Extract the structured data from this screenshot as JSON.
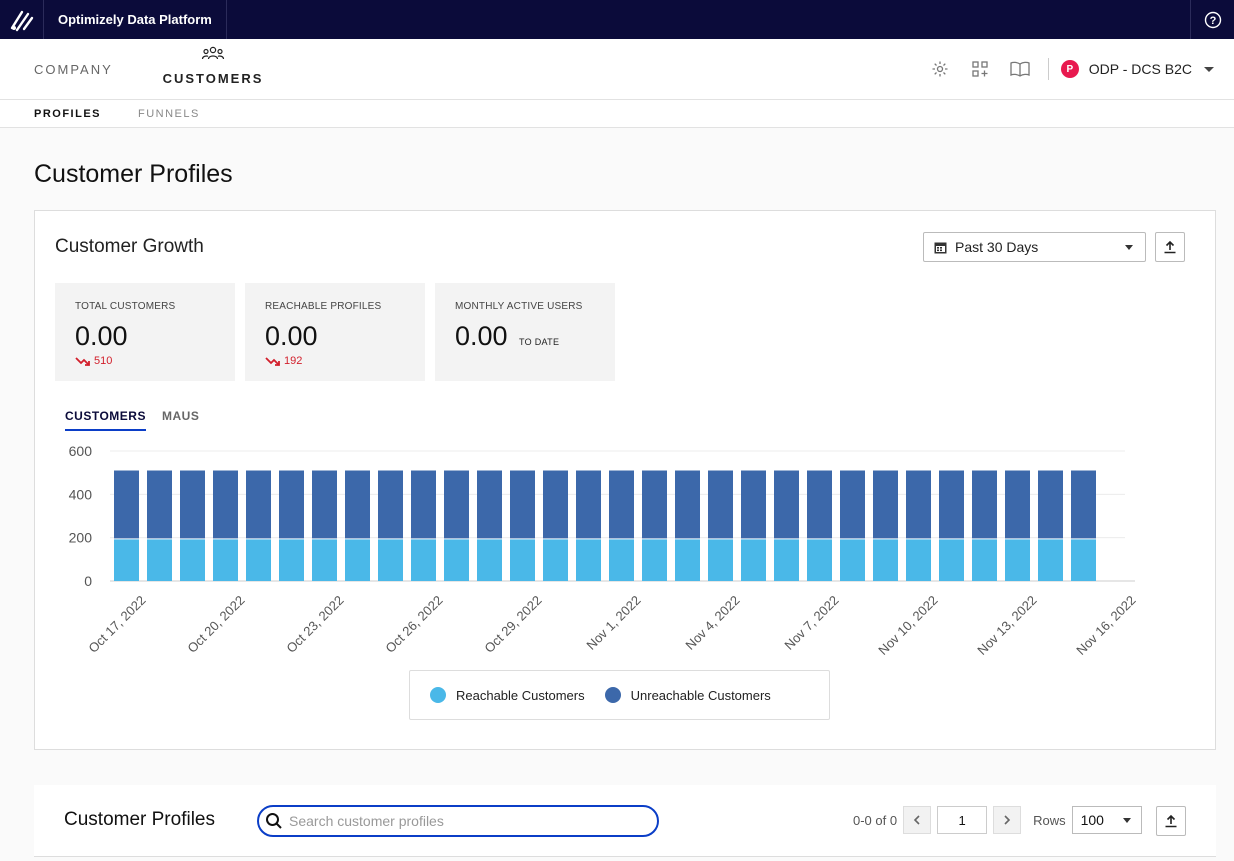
{
  "app": {
    "title": "Optimizely Data Platform"
  },
  "nav": {
    "company_label": "COMPANY",
    "customers_label": "CUSTOMERS",
    "account": {
      "initial": "P",
      "name": "ODP - DCS B2C"
    }
  },
  "subnav": {
    "tabs": [
      {
        "label": "PROFILES"
      },
      {
        "label": "FUNNELS"
      }
    ]
  },
  "page_title": "Customer Profiles",
  "growth": {
    "title": "Customer Growth",
    "date_range": "Past 30 Days",
    "stats": [
      {
        "label": "TOTAL CUSTOMERS",
        "value": "0.00",
        "delta": "510"
      },
      {
        "label": "REACHABLE PROFILES",
        "value": "0.00",
        "delta": "192"
      },
      {
        "label": "MONTHLY ACTIVE USERS",
        "value": "0.00",
        "suffix": "TO DATE"
      }
    ],
    "tabs": [
      {
        "label": "CUSTOMERS"
      },
      {
        "label": "MAUS"
      }
    ],
    "legend": [
      {
        "label": "Reachable Customers",
        "color": "#4ab8e8"
      },
      {
        "label": "Unreachable Customers",
        "color": "#3c68aa"
      }
    ]
  },
  "chart_data": {
    "type": "bar",
    "stacked": true,
    "categories": [
      "Oct 17, 2022",
      "Oct 18, 2022",
      "Oct 19, 2022",
      "Oct 20, 2022",
      "Oct 21, 2022",
      "Oct 22, 2022",
      "Oct 23, 2022",
      "Oct 24, 2022",
      "Oct 25, 2022",
      "Oct 26, 2022",
      "Oct 27, 2022",
      "Oct 28, 2022",
      "Oct 29, 2022",
      "Oct 30, 2022",
      "Oct 31, 2022",
      "Nov 1, 2022",
      "Nov 2, 2022",
      "Nov 3, 2022",
      "Nov 4, 2022",
      "Nov 5, 2022",
      "Nov 6, 2022",
      "Nov 7, 2022",
      "Nov 8, 2022",
      "Nov 9, 2022",
      "Nov 10, 2022",
      "Nov 11, 2022",
      "Nov 12, 2022",
      "Nov 13, 2022",
      "Nov 14, 2022",
      "Nov 15, 2022"
    ],
    "tick_labels": [
      "Oct 17, 2022",
      "Oct 20, 2022",
      "Oct 23, 2022",
      "Oct 26, 2022",
      "Oct 29, 2022",
      "Nov 1, 2022",
      "Nov 4, 2022",
      "Nov 7, 2022",
      "Nov 10, 2022",
      "Nov 13, 2022",
      "Nov 16, 2022"
    ],
    "series": [
      {
        "name": "Reachable Customers",
        "color": "#4ab8e8",
        "values": [
          192,
          192,
          192,
          192,
          192,
          192,
          192,
          192,
          192,
          192,
          192,
          192,
          192,
          192,
          192,
          192,
          192,
          192,
          192,
          192,
          192,
          192,
          192,
          192,
          192,
          192,
          192,
          192,
          192,
          192
        ]
      },
      {
        "name": "Unreachable Customers",
        "color": "#3c68aa",
        "values": [
          318,
          318,
          318,
          318,
          318,
          318,
          318,
          318,
          318,
          318,
          318,
          318,
          318,
          318,
          318,
          318,
          318,
          318,
          318,
          318,
          318,
          318,
          318,
          318,
          318,
          318,
          318,
          318,
          318,
          318
        ]
      }
    ],
    "y_ticks": [
      0,
      200,
      400,
      600
    ],
    "ylim": [
      0,
      600
    ],
    "grid": true,
    "legend_position": "bottom"
  },
  "profiles": {
    "title": "Customer Profiles",
    "search_placeholder": "Search customer profiles",
    "pagination": "0-0 of 0",
    "page": "1",
    "rows_label": "Rows",
    "rows_value": "100"
  }
}
